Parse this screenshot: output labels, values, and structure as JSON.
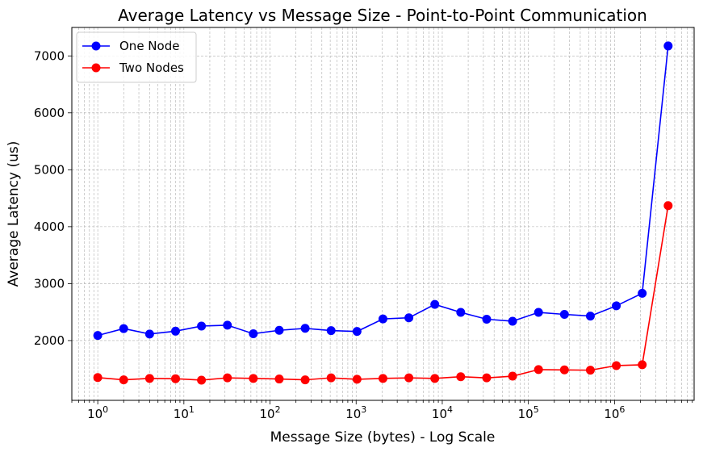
{
  "chart_data": {
    "type": "line",
    "title": "Average Latency vs Message Size - Point-to-Point Communication",
    "xlabel": "Message Size (bytes) - Log Scale",
    "ylabel": "Average Latency (us)",
    "xscale": "log",
    "xlim": [
      0.5,
      8400000
    ],
    "ylim": [
      950,
      7500
    ],
    "grid": true,
    "legend_position": "top-left",
    "x": [
      1,
      2,
      4,
      8,
      16,
      32,
      64,
      128,
      256,
      512,
      1024,
      2048,
      4096,
      8192,
      16384,
      32768,
      65536,
      131072,
      262144,
      524288,
      1048576,
      2097152,
      4194304
    ],
    "x_tick_labels": [
      {
        "base": "10",
        "exp": "0"
      },
      {
        "base": "10",
        "exp": "1"
      },
      {
        "base": "10",
        "exp": "2"
      },
      {
        "base": "10",
        "exp": "3"
      },
      {
        "base": "10",
        "exp": "4"
      },
      {
        "base": "10",
        "exp": "5"
      },
      {
        "base": "10",
        "exp": "6"
      }
    ],
    "y_ticks": [
      2000,
      3000,
      4000,
      5000,
      6000,
      7000
    ],
    "y_tick_labels": [
      "2000",
      "3000",
      "4000",
      "5000",
      "6000",
      "7000"
    ],
    "series": [
      {
        "name": "One Node",
        "color": "#0000ff",
        "values": [
          2090,
          2210,
          2115,
          2165,
          2255,
          2270,
          2120,
          2180,
          2215,
          2175,
          2160,
          2380,
          2400,
          2635,
          2495,
          2375,
          2340,
          2495,
          2460,
          2430,
          2610,
          2830,
          7175
        ]
      },
      {
        "name": "Two Nodes",
        "color": "#ff0000",
        "values": [
          1350,
          1310,
          1335,
          1330,
          1305,
          1345,
          1335,
          1325,
          1310,
          1345,
          1320,
          1335,
          1345,
          1335,
          1365,
          1345,
          1375,
          1490,
          1485,
          1480,
          1560,
          1575,
          4370
        ]
      }
    ]
  }
}
